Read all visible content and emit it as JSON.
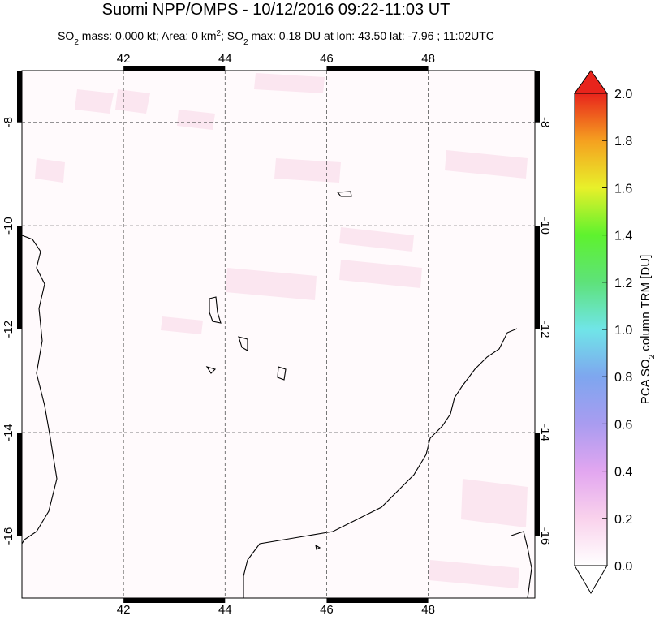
{
  "chart_data": {
    "type": "map",
    "title": "Suomi NPP/OMPS - 10/12/2016 09:22-11:03 UT",
    "subtitle": [
      "SO",
      "2",
      " mass: 0.000 kt; Area: 0 km",
      "2",
      "; SO",
      "2",
      " max: 0.18 DU at lon: 43.50 lat: -7.96 ; 11:02UTC"
    ],
    "xlim": [
      40,
      50.1
    ],
    "ylim": [
      -17.2,
      -7
    ],
    "xticks": [
      42,
      44,
      46,
      48
    ],
    "yticks": [
      -8,
      -10,
      -12,
      -14,
      -16
    ],
    "grid": true,
    "colorbar": {
      "label": [
        "PCA SO",
        "2",
        " column TRM [DU]"
      ],
      "lim": [
        0,
        2
      ],
      "ticks": [
        {
          "value": 0,
          "label": "0.0"
        },
        0.2,
        0.4,
        0.6,
        0.8,
        {
          "value": 1,
          "label": "1.0"
        },
        1.2,
        1.4,
        1.6,
        1.8,
        {
          "value": 2,
          "label": "2.0"
        }
      ]
    }
  }
}
